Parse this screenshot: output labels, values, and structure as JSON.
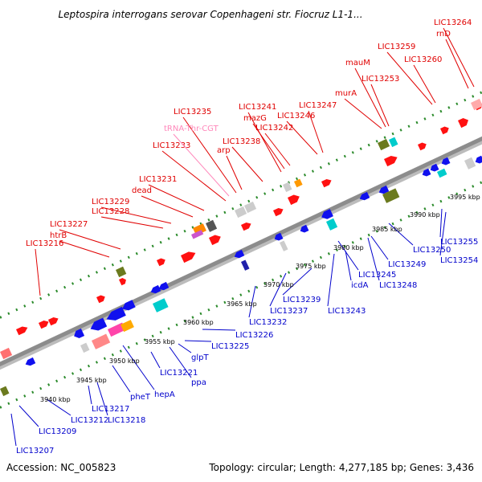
{
  "title": "Leptospira interrogans serovar Copenhageni str. Fiocruz L1-1...",
  "footer": {
    "accession": "Accession: NC_005823",
    "summary": "Topology: circular; Length: 4,277,185 bp; Genes: 3,436"
  },
  "colors": {
    "forward_label": "#e00000",
    "reverse_label": "#0000cc",
    "trna_label": "#ff88bb",
    "forward_feature": "#ff1111",
    "reverse_feature": "#1010ee",
    "backbone": "#8c8c8c",
    "dotted_track": "#2a8a2a"
  },
  "scale_ticks": [
    {
      "label": "3940 kbp"
    },
    {
      "label": "3945 kbp"
    },
    {
      "label": "3950 kbp"
    },
    {
      "label": "3955 kbp"
    },
    {
      "label": "3960 kbp"
    },
    {
      "label": "3965 kbp"
    },
    {
      "label": "3970 kbp"
    },
    {
      "label": "3975 kbp"
    },
    {
      "label": "3980 kbp"
    },
    {
      "label": "3985 kbp"
    },
    {
      "label": "3990 kbp"
    },
    {
      "label": "3995 kbp"
    }
  ],
  "forward_labels": [
    {
      "name": "LIC13216"
    },
    {
      "name": "htrB"
    },
    {
      "name": "LIC13227"
    },
    {
      "name": "LIC13228"
    },
    {
      "name": "LIC13229"
    },
    {
      "name": "dead"
    },
    {
      "name": "LIC13231"
    },
    {
      "name": "LIC13233"
    },
    {
      "name": "LIC13235"
    },
    {
      "name": "tRNA-Thr-CGT"
    },
    {
      "name": "arp"
    },
    {
      "name": "LIC13238"
    },
    {
      "name": "LIC13241"
    },
    {
      "name": "mazG"
    },
    {
      "name": "LIC13242"
    },
    {
      "name": "LIC13246"
    },
    {
      "name": "LIC13247"
    },
    {
      "name": "murA"
    },
    {
      "name": "mauM"
    },
    {
      "name": "LIC13253"
    },
    {
      "name": "LIC13259"
    },
    {
      "name": "LIC13260"
    },
    {
      "name": "rnD"
    },
    {
      "name": "LIC13264"
    }
  ],
  "reverse_labels": [
    {
      "name": "LIC13207"
    },
    {
      "name": "LIC13209"
    },
    {
      "name": "LIC13212"
    },
    {
      "name": "LIC13217"
    },
    {
      "name": "LIC13218"
    },
    {
      "name": "pheT"
    },
    {
      "name": "hepA"
    },
    {
      "name": "LIC13221"
    },
    {
      "name": "ppa"
    },
    {
      "name": "glpT"
    },
    {
      "name": "LIC13225"
    },
    {
      "name": "LIC13226"
    },
    {
      "name": "LIC13232"
    },
    {
      "name": "LIC13237"
    },
    {
      "name": "LIC13239"
    },
    {
      "name": "LIC13243"
    },
    {
      "name": "icdA"
    },
    {
      "name": "LIC13245"
    },
    {
      "name": "LIC13248"
    },
    {
      "name": "LIC13249"
    },
    {
      "name": "LIC13250"
    },
    {
      "name": "LIC13254"
    },
    {
      "name": "LIC13255"
    }
  ]
}
